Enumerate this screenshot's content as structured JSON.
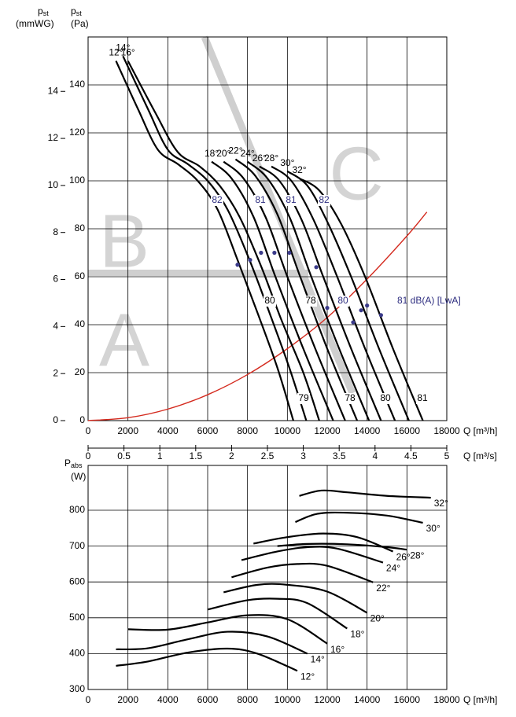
{
  "chart_data": [
    {
      "type": "line",
      "y_axis_label": {
        "symbol": "p",
        "subscript": "st",
        "unit": "(Pa)"
      },
      "y2_axis_label": {
        "symbol": "p",
        "subscript": "st",
        "unit": "(mmWG)"
      },
      "x_axis_label": "Q [m³/h]",
      "x2_axis_label": "Q [m³/s]",
      "xlim": [
        0,
        18000
      ],
      "xticks": [
        0,
        2000,
        4000,
        6000,
        8000,
        10000,
        12000,
        14000,
        16000,
        18000
      ],
      "ylim": [
        0,
        160
      ],
      "yticks": [
        0,
        20,
        40,
        60,
        80,
        100,
        120,
        140
      ],
      "y2lim": [
        0,
        16.315
      ],
      "y2ticks": [
        0,
        2,
        4,
        6,
        8,
        10,
        12,
        14
      ],
      "x2lim": [
        0,
        5
      ],
      "x2ticks": [
        0,
        0.5,
        1,
        1.5,
        2,
        2.5,
        3,
        3.5,
        4,
        4.5,
        5
      ],
      "grid": true,
      "series": [
        {
          "name": "12°",
          "color": "#000000",
          "x": [
            1400,
            2500,
            3500,
            4500,
            5500,
            6500,
            7500,
            8500,
            9500,
            10300
          ],
          "values": [
            150,
            130,
            113,
            107,
            100,
            88,
            67,
            45,
            22,
            0
          ]
        },
        {
          "name": "14°",
          "color": "#000000",
          "x": [
            1750,
            3000,
            4000,
            5000,
            6000,
            7000,
            8100,
            9100,
            10100,
            10950
          ],
          "values": [
            152,
            130,
            113,
            107,
            100,
            88,
            67,
            45,
            22,
            0
          ]
        },
        {
          "name": "16°",
          "color": "#000000",
          "x": [
            2000,
            3400,
            4500,
            5600,
            6600,
            7600,
            8700,
            9700,
            10800,
            11600
          ],
          "values": [
            150,
            128,
            112,
            106,
            98,
            85,
            64,
            42,
            20,
            0
          ]
        },
        {
          "name": "18°",
          "color": "#000000",
          "x": [
            6200,
            7200,
            8300,
            9400,
            10800,
            12300
          ],
          "values": [
            108,
            101,
            85,
            60,
            30,
            0
          ]
        },
        {
          "name": "20°",
          "color": "#000000",
          "x": [
            6800,
            7800,
            8900,
            10000,
            11400,
            12900
          ],
          "values": [
            108,
            101,
            85,
            60,
            30,
            0
          ]
        },
        {
          "name": "22°",
          "color": "#000000",
          "x": [
            7400,
            8400,
            9500,
            10600,
            12000,
            13500
          ],
          "values": [
            109,
            102,
            86,
            61,
            30,
            0
          ]
        },
        {
          "name": "24°",
          "color": "#000000",
          "x": [
            8000,
            9000,
            10100,
            11200,
            12600,
            14100
          ],
          "values": [
            108,
            101,
            85,
            60,
            30,
            0
          ]
        },
        {
          "name": "26°",
          "color": "#000000",
          "x": [
            8600,
            9600,
            10700,
            11800,
            13200,
            14700
          ],
          "values": [
            106,
            100,
            84,
            60,
            30,
            0
          ]
        },
        {
          "name": "28°",
          "color": "#000000",
          "x": [
            9200,
            10200,
            11300,
            12500,
            13900,
            15400
          ],
          "values": [
            106,
            100,
            84,
            60,
            30,
            0
          ]
        },
        {
          "name": "30°",
          "color": "#000000",
          "x": [
            10000,
            11000,
            12000,
            13200,
            14600,
            16100
          ],
          "values": [
            104,
            98,
            83,
            60,
            30,
            0
          ]
        },
        {
          "name": "32°",
          "color": "#000000",
          "x": [
            10600,
            11600,
            12700,
            13900,
            15300,
            16800
          ],
          "values": [
            101,
            96,
            82,
            60,
            30,
            0
          ]
        }
      ],
      "system_curve": {
        "color": "#d42a1e",
        "x": [
          0,
          2000,
          4000,
          6000,
          8000,
          10000,
          12000,
          14000,
          16000,
          17000
        ],
        "values": [
          0,
          1.2,
          4.8,
          10.8,
          19.2,
          30,
          43,
          59,
          77,
          87
        ]
      },
      "operating_points": {
        "color": "#3a3a8a",
        "x": [
          7500,
          8130,
          8680,
          9350,
          10100,
          11450,
          12000,
          13300,
          13700,
          14000,
          14700
        ],
        "values": [
          65,
          67,
          70,
          70,
          70,
          64,
          47,
          41,
          46,
          48,
          44
        ]
      },
      "sound_labels": [
        {
          "text": "82",
          "color": "#2e2e80"
        },
        {
          "text": "81",
          "color": "#2e2e80"
        },
        {
          "text": "81",
          "color": "#2e2e80"
        },
        {
          "text": "82",
          "color": "#2e2e80"
        },
        {
          "text": "80",
          "color": "#000000"
        },
        {
          "text": "78",
          "color": "#000000"
        },
        {
          "text": "80",
          "color": "#2e2e80"
        },
        {
          "text": "81 dB(A) [LwA]",
          "color": "#2e2e80"
        },
        {
          "text": "79",
          "color": "#000000"
        },
        {
          "text": "78",
          "color": "#000000"
        },
        {
          "text": "80",
          "color": "#000000"
        },
        {
          "text": "81",
          "color": "#000000"
        }
      ],
      "zones": [
        "A",
        "B",
        "C"
      ]
    },
    {
      "type": "line",
      "y_axis_label": {
        "symbol": "P",
        "subscript": "abs",
        "unit": "(W)"
      },
      "x_axis_label": "Q [m³/h]",
      "xlim": [
        0,
        18000
      ],
      "xticks": [
        0,
        2000,
        4000,
        6000,
        8000,
        10000,
        12000,
        14000,
        16000,
        18000
      ],
      "ylim": [
        300,
        925
      ],
      "yticks": [
        300,
        400,
        500,
        600,
        700,
        800
      ],
      "grid": true,
      "series": [
        {
          "name": "12°",
          "color": "#000000",
          "x": [
            1400,
            3000,
            5000,
            7000,
            8500,
            10500
          ],
          "values": [
            366,
            378,
            403,
            414,
            400,
            352
          ]
        },
        {
          "name": "14°",
          "color": "#000000",
          "x": [
            1400,
            3000,
            5000,
            7000,
            9000,
            11000
          ],
          "values": [
            412,
            415,
            440,
            461,
            448,
            400
          ]
        },
        {
          "name": "16°",
          "color": "#000000",
          "x": [
            2000,
            4000,
            6000,
            8000,
            10000,
            12000
          ],
          "values": [
            468,
            467,
            487,
            507,
            496,
            428
          ]
        },
        {
          "name": "18°",
          "color": "#000000",
          "x": [
            6000,
            8000,
            9500,
            11000,
            13000
          ],
          "values": [
            523,
            549,
            553,
            541,
            470
          ]
        },
        {
          "name": "20°",
          "color": "#000000",
          "x": [
            6800,
            8500,
            10000,
            12000,
            14000
          ],
          "values": [
            571,
            592,
            592,
            573,
            514
          ]
        },
        {
          "name": "22°",
          "color": "#000000",
          "x": [
            7200,
            9000,
            10500,
            12000,
            14300
          ],
          "values": [
            613,
            640,
            650,
            645,
            599
          ]
        },
        {
          "name": "24°",
          "color": "#000000",
          "x": [
            7700,
            9500,
            11000,
            12500,
            14800
          ],
          "values": [
            661,
            685,
            697,
            693,
            654
          ]
        },
        {
          "name": "26°",
          "color": "#000000",
          "x": [
            8300,
            10000,
            11800,
            13500,
            15300
          ],
          "values": [
            707,
            725,
            735,
            725,
            685
          ]
        },
        {
          "name": "28°",
          "color": "#000000",
          "x": [
            9500,
            11000,
            13000,
            15000,
            16000
          ],
          "values": [
            700,
            706,
            705,
            697,
            690
          ]
        },
        {
          "name": "30°",
          "color": "#000000",
          "x": [
            10400,
            11500,
            13000,
            15000,
            16800
          ],
          "values": [
            767,
            790,
            793,
            785,
            765
          ]
        },
        {
          "name": "32°",
          "color": "#000000",
          "x": [
            10600,
            11700,
            13000,
            15000,
            17200
          ],
          "values": [
            840,
            855,
            850,
            840,
            835
          ]
        }
      ]
    }
  ]
}
